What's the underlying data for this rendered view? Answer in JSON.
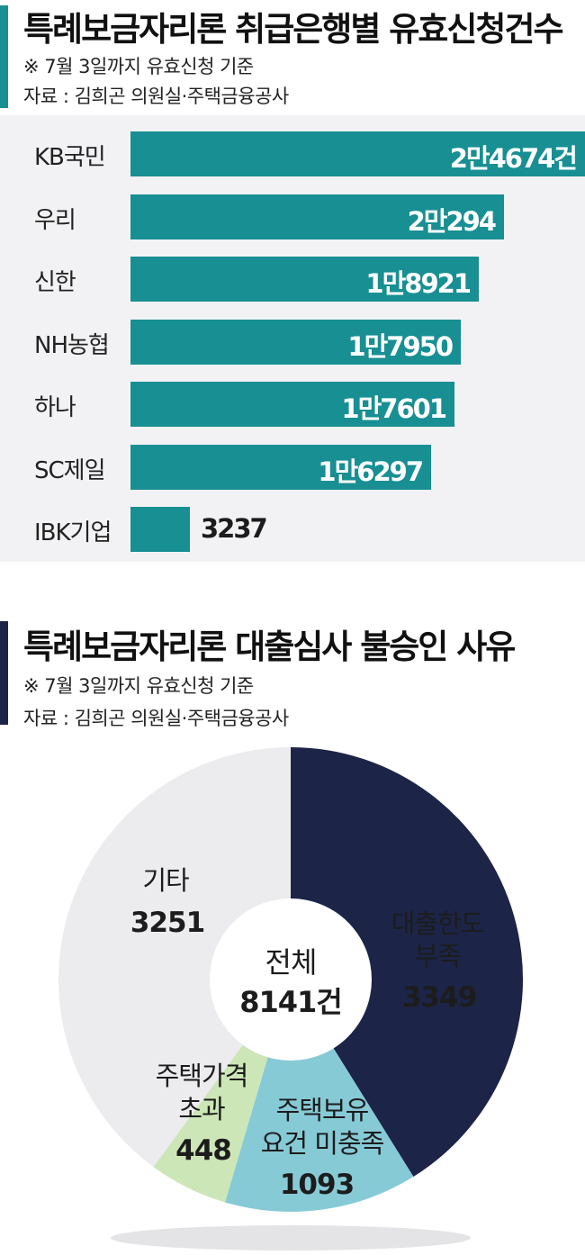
{
  "bar_section": {
    "title": "특례보금자리론 취급은행별 유효신청건수",
    "note": "※ 7월 3일까지 유효신청 기준",
    "source": "자료 : 김희곤 의원실·주택금융공사",
    "accent_color": "#188f93"
  },
  "pie_section": {
    "title": "특례보금자리론 대출심사 불승인 사유",
    "note": "※ 7월 3일까지 유효신청 기준",
    "source": "자료 : 김희곤 의원실·주택금융공사",
    "accent_color": "#1c2448",
    "center_label": [
      "전체",
      "8141건"
    ]
  },
  "chart_data": [
    {
      "type": "bar",
      "orientation": "horizontal",
      "title": "특례보금자리론 취급은행별 유효신청건수",
      "categories": [
        "KB국민",
        "우리",
        "신한",
        "NH농협",
        "하나",
        "SC제일",
        "IBK기업"
      ],
      "values": [
        24674,
        20294,
        18921,
        17950,
        17601,
        16297,
        3237
      ],
      "value_labels": [
        "2만4674건",
        "2만294",
        "1만8921",
        "1만7950",
        "1만7601",
        "1만6297",
        "3237"
      ],
      "bar_color": "#188f93"
    },
    {
      "type": "pie",
      "donut": true,
      "title": "특례보금자리론 대출심사 불승인 사유",
      "total": 8141,
      "slices": [
        {
          "label": [
            "대출한도",
            "부족"
          ],
          "value": 3349,
          "color": "#1c2448"
        },
        {
          "label": [
            "주택보유",
            "요건 미충족"
          ],
          "value": 1093,
          "color": "#86cad6"
        },
        {
          "label": [
            "주택가격",
            "초과"
          ],
          "value": 448,
          "color": "#cde6b7"
        },
        {
          "label": [
            "기타"
          ],
          "value": 3251,
          "color": "#ececef"
        }
      ]
    }
  ]
}
